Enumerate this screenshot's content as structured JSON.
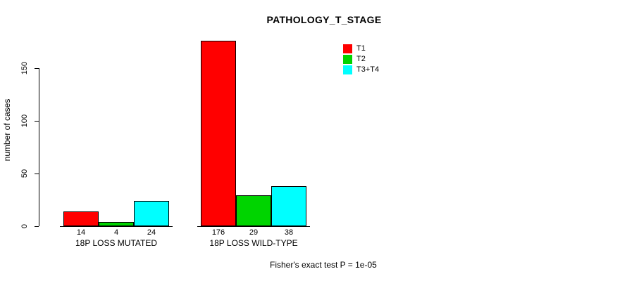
{
  "title": "PATHOLOGY_T_STAGE",
  "footer": "Fisher's exact test P = 1e-05",
  "chart_data": {
    "type": "bar",
    "title": "PATHOLOGY_T_STAGE",
    "ylabel": "number of cases",
    "xlabel": "",
    "categories": [
      "18P LOSS MUTATED",
      "18P LOSS WILD-TYPE"
    ],
    "series": [
      {
        "name": "T1",
        "color": "#ff0000",
        "values": [
          14,
          176
        ]
      },
      {
        "name": "T2",
        "color": "#00d400",
        "values": [
          4,
          29
        ]
      },
      {
        "name": "T3+T4",
        "color": "#00ffff",
        "values": [
          24,
          38
        ]
      }
    ],
    "bar_value_labels": [
      [
        14,
        4,
        24
      ],
      [
        176,
        29,
        38
      ]
    ],
    "yticks": [
      0,
      50,
      100,
      150
    ],
    "ylim": [
      0,
      180
    ],
    "grid": false,
    "legend_position": "top-right",
    "annotation": "Fisher's exact test P = 1e-05"
  }
}
